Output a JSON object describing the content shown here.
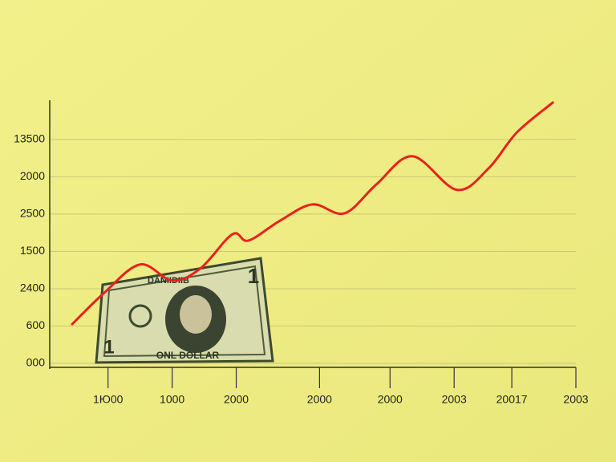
{
  "chart_data": {
    "type": "line",
    "x": [
      -0.56,
      -0.06,
      0.5,
      1,
      1.44,
      1.94,
      2.19,
      2.69,
      3.19,
      3.69,
      4.19,
      4.75,
      5.44,
      5.94,
      6.38,
      6.94
    ],
    "series": [
      {
        "color": "#e8231c",
        "values": [
          1.05,
          1.89,
          2.65,
          2.22,
          2.54,
          3.46,
          3.29,
          3.83,
          4.26,
          4.02,
          4.8,
          5.55,
          4.65,
          5.23,
          6.19,
          6.99
        ]
      }
    ],
    "xlim": [
      -0.91,
      7.3
    ],
    "xticks": [
      {
        "value": 0,
        "label": "1Ю00"
      },
      {
        "value": 1,
        "label": "1000"
      },
      {
        "value": 2,
        "label": "2000"
      },
      {
        "value": 3.3,
        "label": "2000"
      },
      {
        "value": 4.4,
        "label": "2000"
      },
      {
        "value": 5.4,
        "label": "2003"
      },
      {
        "value": 6.3,
        "label": "20017"
      },
      {
        "value": 7.3,
        "label": "2003"
      }
    ],
    "ylim": [
      -0.15,
      7.05
    ],
    "yticks": [
      {
        "value": 0,
        "label": "000"
      },
      {
        "value": 1,
        "label": "600"
      },
      {
        "value": 2,
        "label": "2400"
      },
      {
        "value": 3,
        "label": "1500"
      },
      {
        "value": 4,
        "label": "2500"
      },
      {
        "value": 5,
        "label": "2000"
      },
      {
        "value": 6,
        "label": "13500"
      }
    ],
    "grid": true,
    "illustration": {
      "top_text": "DANIIDIIB",
      "bottom_text": "ONL DOLLAR",
      "corner": "1"
    }
  }
}
